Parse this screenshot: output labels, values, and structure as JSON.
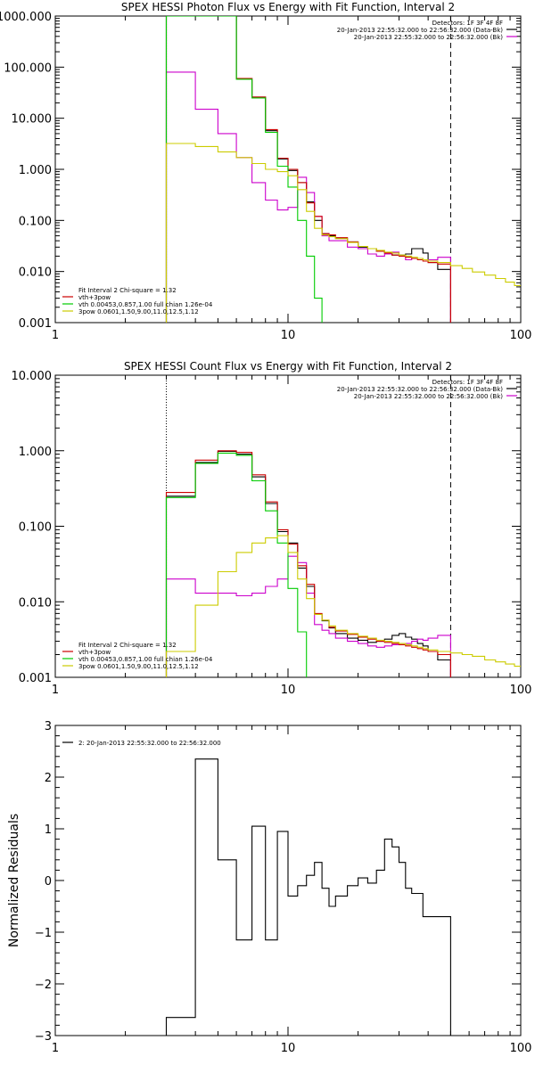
{
  "chart_data": [
    {
      "type": "line",
      "title": "SPEX HESSI Photon Flux vs Energy with Fit Function, Interval 2",
      "xlabel": "",
      "ylabel": "",
      "xscale": "log",
      "yscale": "log",
      "xlim": [
        1,
        100
      ],
      "ylim": [
        0.001,
        1000
      ],
      "xticks": [
        {
          "v": 1,
          "label": "1"
        },
        {
          "v": 10,
          "label": "10"
        },
        {
          "v": 100,
          "label": "100"
        }
      ],
      "yticks": [
        {
          "v": 0.001,
          "label": "0.001"
        },
        {
          "v": 0.01,
          "label": "0.010"
        },
        {
          "v": 0.1,
          "label": "0.100"
        },
        {
          "v": 1,
          "label": "1.000"
        },
        {
          "v": 10,
          "label": "10.000"
        },
        {
          "v": 100,
          "label": "100.000"
        },
        {
          "v": 1000,
          "label": "1000.000"
        }
      ],
      "vlines": [
        {
          "x": 3,
          "style": "dotted",
          "color": "#000000"
        },
        {
          "x": 50,
          "style": "dashed",
          "color": "#000000"
        }
      ],
      "legend_top_right": {
        "position": "top-right",
        "lines": [
          {
            "text": "Detectors: 1F 3F 4F 8F",
            "color": ""
          },
          {
            "text": "20-Jan-2013 22:55:32.000 to 22:56:32.000 (Data-Bk)",
            "color": "#000000"
          },
          {
            "text": "20-Jan-2013 22:55:32.000 to 22:56:32.000 (Bk)",
            "color": "#cc00cc"
          }
        ]
      },
      "legend_bottom_left": {
        "position": "bottom-left",
        "lines": [
          {
            "text": "Fit Interval 2   Chi-square = 1.32",
            "color": ""
          },
          {
            "text": "vth+3pow",
            "color": "#cc0000"
          },
          {
            "text": "vth 0.00453,0.857,1.00  full chian 1.26e-04",
            "color": "#00cc00"
          },
          {
            "text": "3pow 0.0601,1.50,9.00,11.0,12.5,1.12",
            "color": "#cccc00"
          }
        ]
      },
      "series": [
        {
          "key": "data",
          "color": "#000000",
          "edges": [
            3,
            4,
            5,
            6,
            7,
            8,
            9,
            10,
            11,
            12,
            13,
            14,
            15,
            16,
            18,
            20,
            22,
            24,
            26,
            28,
            30,
            32,
            34,
            36,
            38,
            40,
            44,
            50
          ],
          "values": [
            1000,
            1000,
            1000,
            60,
            26,
            5.7,
            1.6,
            0.95,
            0.55,
            0.23,
            0.1,
            0.055,
            0.05,
            0.045,
            0.038,
            0.03,
            0.028,
            0.025,
            0.023,
            0.021,
            0.021,
            0.022,
            0.028,
            0.028,
            0.023,
            0.015,
            0.011
          ]
        },
        {
          "key": "bk",
          "color": "#cc00cc",
          "edges": [
            3,
            4,
            5,
            6,
            7,
            8,
            9,
            10,
            11,
            12,
            13,
            14,
            15,
            16,
            18,
            20,
            22,
            24,
            26,
            28,
            30,
            32,
            34,
            36,
            38,
            40,
            44,
            50
          ],
          "values": [
            80,
            15,
            5,
            1.7,
            0.55,
            0.25,
            0.16,
            0.18,
            0.7,
            0.35,
            0.12,
            0.05,
            0.04,
            0.04,
            0.03,
            0.028,
            0.022,
            0.02,
            0.022,
            0.024,
            0.02,
            0.017,
            0.018,
            0.018,
            0.017,
            0.017,
            0.019
          ]
        },
        {
          "key": "model",
          "color": "#cc0000",
          "edges": [
            3,
            4,
            5,
            6,
            7,
            8,
            9,
            10,
            11,
            12,
            13,
            14,
            15,
            16,
            18,
            20,
            22,
            24,
            26,
            28,
            30,
            32,
            34,
            36,
            38,
            40,
            44,
            50
          ],
          "values": [
            1000,
            1000,
            1000,
            60,
            26,
            6.0,
            1.65,
            1.0,
            0.55,
            0.22,
            0.12,
            0.055,
            0.052,
            0.046,
            0.038,
            0.031,
            0.028,
            0.025,
            0.023,
            0.021,
            0.02,
            0.019,
            0.018,
            0.017,
            0.016,
            0.015,
            0.014
          ]
        },
        {
          "key": "vth",
          "color": "#00cc00",
          "edges": [
            3,
            4,
            5,
            6,
            7,
            8,
            9,
            10,
            11,
            12,
            13,
            14
          ],
          "values": [
            1000,
            1000,
            1000,
            58,
            25,
            5.3,
            1.15,
            0.45,
            0.1,
            0.02,
            0.003
          ]
        },
        {
          "key": "pow",
          "color": "#cccc00",
          "edges": [
            3,
            4,
            5,
            6,
            7,
            8,
            9,
            10,
            11,
            12,
            13,
            14,
            15,
            16,
            18,
            20,
            22,
            24,
            26,
            28,
            30,
            32,
            34,
            36,
            38,
            40,
            44,
            50,
            56,
            62,
            70,
            78,
            86,
            94,
            100
          ],
          "values": [
            3.2,
            2.8,
            2.2,
            1.7,
            1.3,
            1.0,
            0.9,
            0.75,
            0.4,
            0.15,
            0.07,
            0.052,
            0.048,
            0.044,
            0.037,
            0.031,
            0.028,
            0.026,
            0.024,
            0.023,
            0.021,
            0.02,
            0.019,
            0.018,
            0.017,
            0.016,
            0.015,
            0.013,
            0.0115,
            0.0098,
            0.0085,
            0.0073,
            0.0062,
            0.0053
          ]
        }
      ]
    },
    {
      "type": "line",
      "title": "SPEX HESSI Count Flux vs Energy with Fit Function, Interval 2",
      "xlabel": "",
      "ylabel": "",
      "xscale": "log",
      "yscale": "log",
      "xlim": [
        1,
        100
      ],
      "ylim": [
        0.001,
        10
      ],
      "xticks": [
        {
          "v": 1,
          "label": "1"
        },
        {
          "v": 10,
          "label": "10"
        },
        {
          "v": 100,
          "label": "100"
        }
      ],
      "yticks": [
        {
          "v": 0.001,
          "label": "0.001"
        },
        {
          "v": 0.01,
          "label": "0.010"
        },
        {
          "v": 0.1,
          "label": "0.100"
        },
        {
          "v": 1,
          "label": "1.000"
        },
        {
          "v": 10,
          "label": "10.000"
        }
      ],
      "vlines": [
        {
          "x": 3,
          "style": "dotted",
          "color": "#000000"
        },
        {
          "x": 50,
          "style": "dashed",
          "color": "#000000"
        }
      ],
      "legend_top_right": {
        "position": "top-right",
        "lines": [
          {
            "text": "Detectors: 1F 3F 4F 8F",
            "color": ""
          },
          {
            "text": "20-Jan-2013 22:55:32.000 to 22:56:32.000 (Data-Bk)",
            "color": "#000000"
          },
          {
            "text": "20-Jan-2013 22:55:32.000 to 22:56:32.000 (Bk)",
            "color": "#cc00cc"
          }
        ]
      },
      "legend_bottom_left": {
        "position": "bottom-left",
        "lines": [
          {
            "text": "Fit Interval 2   Chi-square = 1.32",
            "color": ""
          },
          {
            "text": "vth+3pow",
            "color": "#cc0000"
          },
          {
            "text": "vth 0.00453,0.857,1.00  full chian 1.26e-04",
            "color": "#00cc00"
          },
          {
            "text": "3pow 0.0601,1.50,9.00,11.0,12.5,1.12",
            "color": "#cccc00"
          }
        ]
      },
      "series": [
        {
          "key": "data",
          "color": "#000000",
          "edges": [
            3,
            4,
            5,
            6,
            7,
            8,
            9,
            10,
            11,
            12,
            13,
            14,
            15,
            16,
            18,
            20,
            22,
            24,
            26,
            28,
            30,
            32,
            34,
            36,
            38,
            40,
            44,
            50
          ],
          "values": [
            0.25,
            0.7,
            0.98,
            0.9,
            0.45,
            0.2,
            0.085,
            0.06,
            0.028,
            0.016,
            0.0068,
            0.0056,
            0.0045,
            0.0038,
            0.0033,
            0.0031,
            0.0029,
            0.003,
            0.0032,
            0.0036,
            0.0038,
            0.0034,
            0.0032,
            0.0028,
            0.0026,
            0.0022,
            0.0017
          ]
        },
        {
          "key": "bk",
          "color": "#cc00cc",
          "edges": [
            3,
            4,
            5,
            6,
            7,
            8,
            9,
            10,
            11,
            12,
            13,
            14,
            15,
            16,
            18,
            20,
            22,
            24,
            26,
            28,
            30,
            32,
            34,
            36,
            38,
            40,
            44,
            50
          ],
          "values": [
            0.02,
            0.013,
            0.013,
            0.012,
            0.013,
            0.016,
            0.02,
            0.04,
            0.033,
            0.013,
            0.005,
            0.0042,
            0.0038,
            0.0033,
            0.003,
            0.0028,
            0.0026,
            0.0025,
            0.0026,
            0.0027,
            0.0028,
            0.0028,
            0.003,
            0.0032,
            0.0031,
            0.0033,
            0.0036
          ]
        },
        {
          "key": "model",
          "color": "#cc0000",
          "edges": [
            3,
            4,
            5,
            6,
            7,
            8,
            9,
            10,
            11,
            12,
            13,
            14,
            15,
            16,
            18,
            20,
            22,
            24,
            26,
            28,
            30,
            32,
            34,
            36,
            38,
            40,
            44,
            50
          ],
          "values": [
            0.28,
            0.75,
            1.0,
            0.95,
            0.48,
            0.21,
            0.09,
            0.058,
            0.03,
            0.017,
            0.007,
            0.0057,
            0.0046,
            0.0041,
            0.0037,
            0.0034,
            0.0032,
            0.003,
            0.0029,
            0.0028,
            0.0027,
            0.0026,
            0.0025,
            0.0024,
            0.0023,
            0.0022,
            0.002
          ]
        },
        {
          "key": "vth",
          "color": "#00cc00",
          "edges": [
            3,
            4,
            5,
            6,
            7,
            8,
            9,
            10,
            11,
            12
          ],
          "values": [
            0.24,
            0.68,
            0.93,
            0.87,
            0.4,
            0.16,
            0.06,
            0.015,
            0.004
          ]
        },
        {
          "key": "pow",
          "color": "#cccc00",
          "edges": [
            3,
            4,
            5,
            6,
            7,
            8,
            9,
            10,
            11,
            12,
            13,
            14,
            15,
            16,
            18,
            20,
            22,
            24,
            26,
            28,
            30,
            32,
            34,
            36,
            38,
            40,
            44,
            50,
            56,
            62,
            70,
            78,
            86,
            94,
            100
          ],
          "values": [
            0.0022,
            0.009,
            0.025,
            0.045,
            0.06,
            0.07,
            0.075,
            0.045,
            0.02,
            0.011,
            0.0068,
            0.0057,
            0.0048,
            0.0042,
            0.0038,
            0.0035,
            0.0033,
            0.0031,
            0.003,
            0.0029,
            0.0028,
            0.0027,
            0.0026,
            0.0025,
            0.0024,
            0.0023,
            0.0022,
            0.0021,
            0.002,
            0.0019,
            0.0017,
            0.0016,
            0.0015,
            0.0014
          ]
        }
      ]
    },
    {
      "type": "line",
      "title": "",
      "xlabel": "",
      "ylabel": "Normalized Residuals",
      "xscale": "log",
      "yscale": "linear",
      "xlim": [
        1,
        100
      ],
      "ylim": [
        -3,
        3
      ],
      "xticks": [
        {
          "v": 1,
          "label": "1"
        },
        {
          "v": 10,
          "label": "10"
        },
        {
          "v": 100,
          "label": "100"
        }
      ],
      "yticks": [
        {
          "v": -3,
          "label": "−3"
        },
        {
          "v": -2,
          "label": "−2"
        },
        {
          "v": -1,
          "label": "−1"
        },
        {
          "v": 0,
          "label": "0"
        },
        {
          "v": 1,
          "label": "1"
        },
        {
          "v": 2,
          "label": "2"
        },
        {
          "v": 3,
          "label": "3"
        }
      ],
      "vlines": [],
      "legend_top_left": {
        "position": "top-left",
        "lines": [
          {
            "text": "2: 20-Jan-2013 22:55:32.000 to 22:56:32.000",
            "color": "#000000"
          }
        ]
      },
      "series": [
        {
          "key": "resid",
          "color": "#000000",
          "edges": [
            3,
            4,
            5,
            6,
            7,
            8,
            9,
            10,
            11,
            12,
            13,
            14,
            15,
            16,
            18,
            20,
            22,
            24,
            26,
            28,
            30,
            32,
            34,
            36,
            38,
            40,
            44,
            50
          ],
          "values": [
            -2.65,
            2.35,
            0.4,
            -1.15,
            1.05,
            -1.15,
            0.95,
            -0.3,
            -0.1,
            0.1,
            0.35,
            -0.15,
            -0.5,
            -0.3,
            -0.1,
            0.05,
            -0.05,
            0.2,
            0.8,
            0.65,
            0.35,
            -0.15,
            -0.25,
            -0.25,
            -0.7,
            -0.7,
            -0.7
          ],
          "base": -3
        }
      ]
    }
  ]
}
